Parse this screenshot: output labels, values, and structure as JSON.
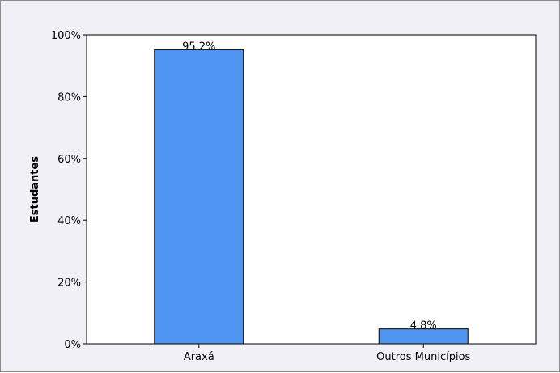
{
  "chart_data": {
    "type": "bar",
    "categories": [
      "Araxá",
      "Outros Municípios"
    ],
    "values": [
      95.2,
      4.8
    ],
    "data_labels": [
      "95,2%",
      "4,8%"
    ],
    "ylabel": "Estudantes",
    "xlabel": "",
    "ylim": [
      0,
      100
    ],
    "yticks": [
      0,
      20,
      40,
      60,
      80,
      100
    ],
    "ytick_labels": [
      "0%",
      "20%",
      "40%",
      "60%",
      "80%",
      "100%"
    ],
    "grid": false,
    "legend": "none",
    "colors": {
      "bar_fill": "#4f94f0",
      "bar_stroke": "#000000",
      "plot_bg": "#ffffff",
      "frame_bg": "#f0f0f6"
    }
  }
}
